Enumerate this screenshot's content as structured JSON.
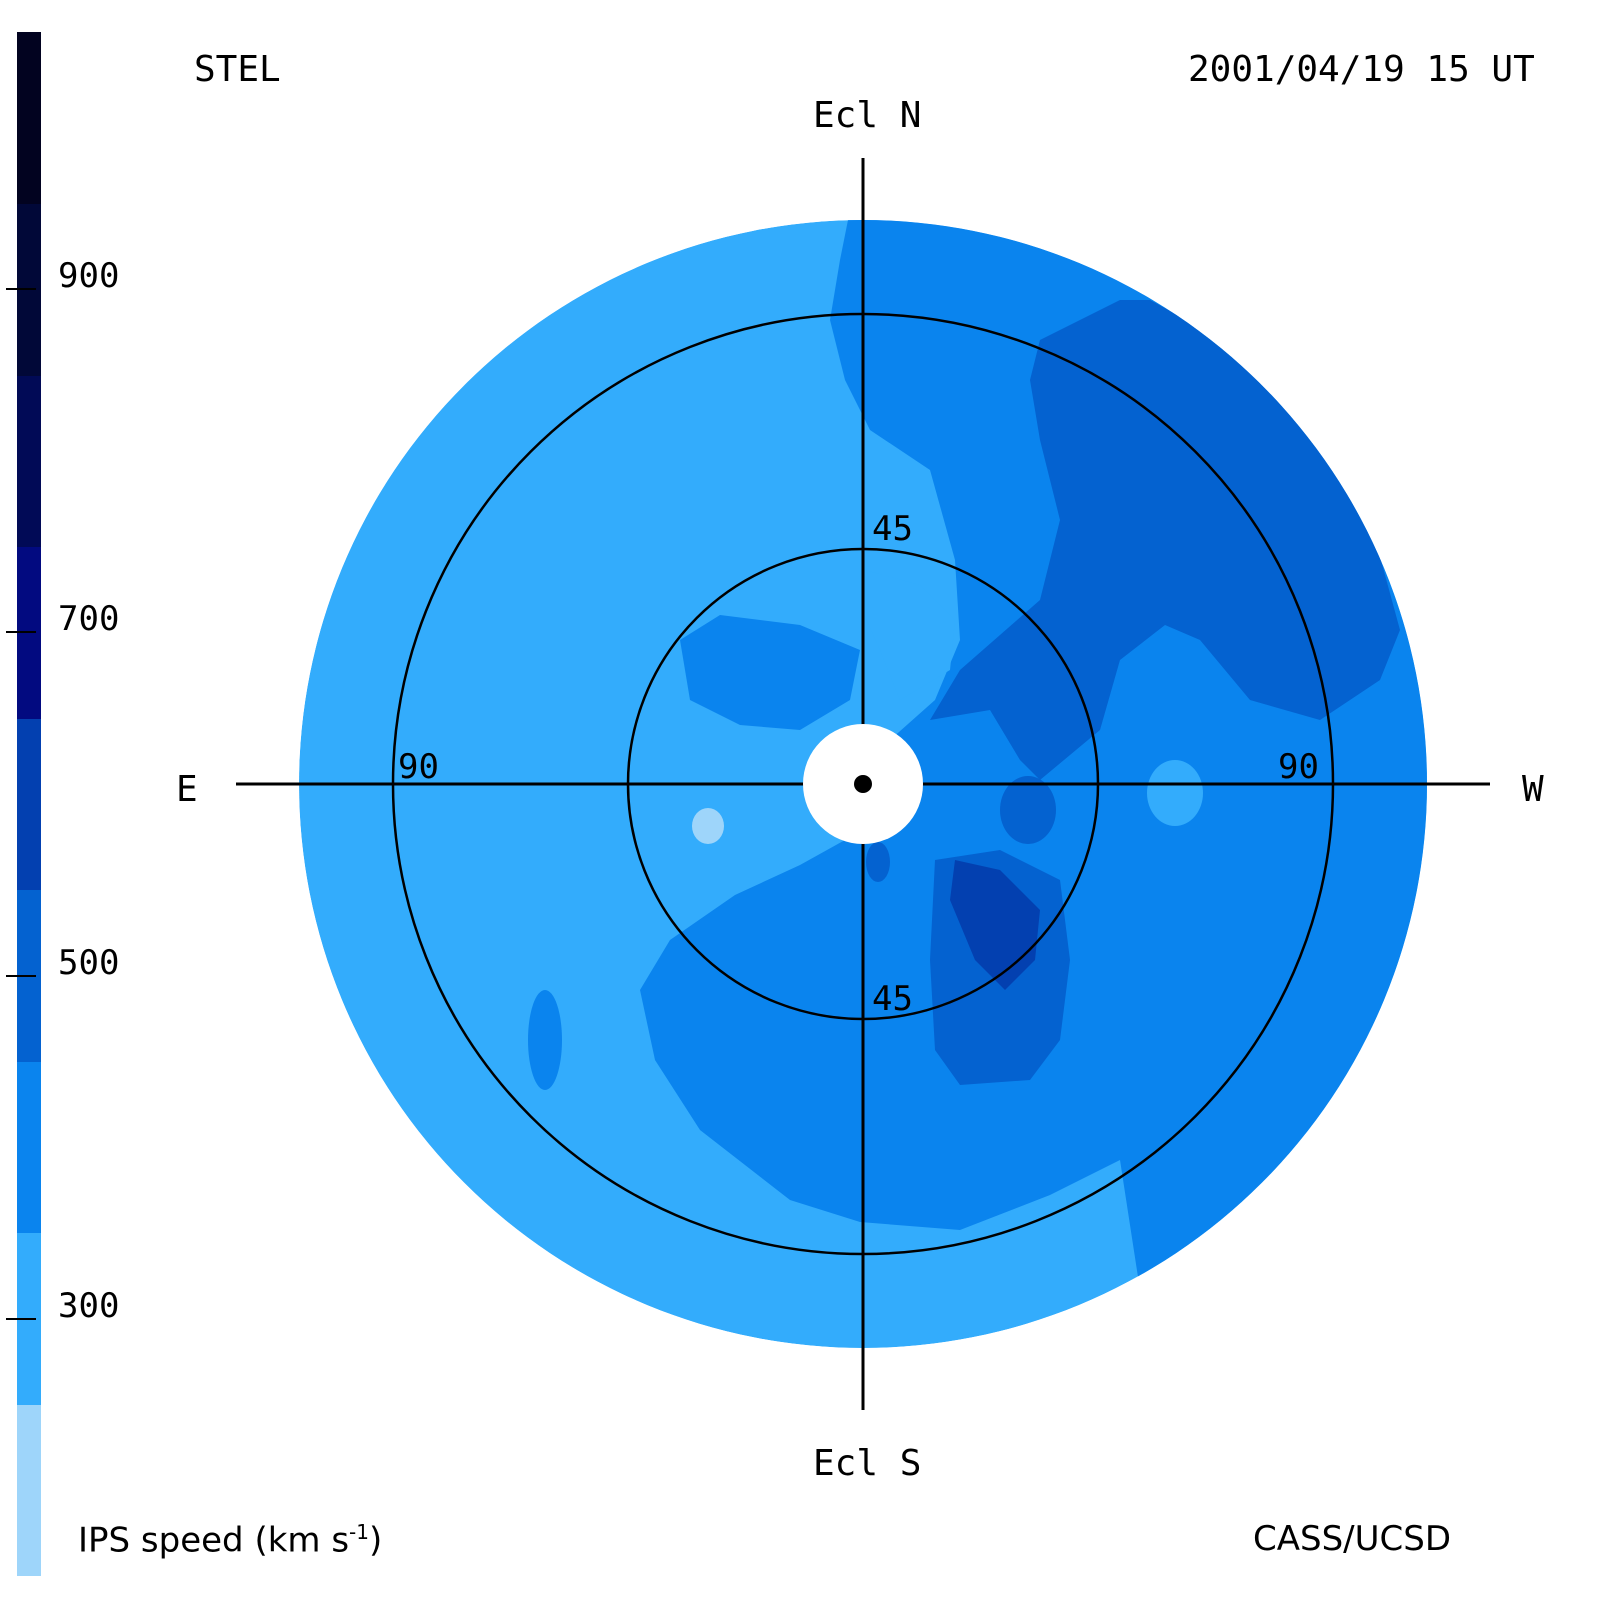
{
  "header": {
    "observatory": "STEL",
    "datetime": "2001/04/19 15 UT"
  },
  "footer": {
    "colorbar_title": "IPS speed (km s",
    "colorbar_title_sup": "-1",
    "colorbar_title_end": ")",
    "credit": "CASS/UCSD"
  },
  "chart_data": {
    "type": "heatmap",
    "title": "STEL",
    "projection": "polar sky map (elongation from Sun)",
    "direction_labels": {
      "north": "Ecl N",
      "south": "Ecl S",
      "east": "E",
      "west": "W"
    },
    "elongation_rings_deg": [
      45,
      90
    ],
    "ring_labels": {
      "upper_45": "45",
      "lower_45": "45",
      "left_90": "90",
      "right_90": "90"
    },
    "max_elongation_deg": 108,
    "colorbar": {
      "label": "IPS speed (km s-1)",
      "range": [
        150,
        1050
      ],
      "ticks": [
        {
          "value": 300,
          "label": "300"
        },
        {
          "value": 500,
          "label": "500"
        },
        {
          "value": 700,
          "label": "700"
        },
        {
          "value": 900,
          "label": "900"
        }
      ],
      "levels": [
        {
          "from": 150,
          "to": 250,
          "color": "#9ed5fa"
        },
        {
          "from": 250,
          "to": 350,
          "color": "#33acfc"
        },
        {
          "from": 350,
          "to": 450,
          "color": "#0a84ee"
        },
        {
          "from": 450,
          "to": 550,
          "color": "#0462d0"
        },
        {
          "from": 550,
          "to": 650,
          "color": "#0340b0"
        },
        {
          "from": 650,
          "to": 750,
          "color": "#020a80"
        },
        {
          "from": 750,
          "to": 850,
          "color": "#010a56"
        },
        {
          "from": 850,
          "to": 950,
          "color": "#010838"
        },
        {
          "from": 950,
          "to": 1050,
          "color": "#020320"
        }
      ]
    },
    "regions": [
      {
        "speed_kms": 300,
        "area": "background / eastern half and outer ring"
      },
      {
        "speed_kms": 400,
        "area": "northwest outer, southern inner, southwest"
      },
      {
        "speed_kms": 500,
        "area": "northwest quadrant band, inner spots"
      },
      {
        "speed_kms": 600,
        "area": "southwest inner core"
      },
      {
        "speed_kms": 200,
        "area": "small spot east of Sun"
      }
    ]
  }
}
